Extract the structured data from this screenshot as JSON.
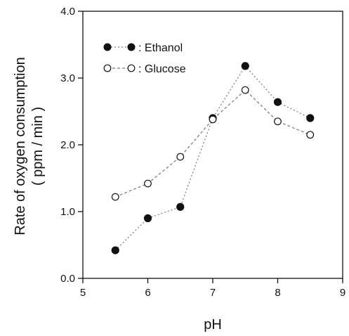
{
  "chart_data": {
    "type": "line",
    "xlabel": "pH",
    "ylabel_line1": "Rate of oxygen consumption",
    "ylabel_line2": "( ppm / min )",
    "xlim": [
      5,
      9
    ],
    "ylim": [
      0,
      4
    ],
    "xticks": [
      "5",
      "6",
      "7",
      "8",
      "9"
    ],
    "yticks": [
      "0.0",
      "1.0",
      "2.0",
      "3.0",
      "4.0"
    ],
    "grid": false,
    "legend_position": "top-left",
    "series": [
      {
        "name": ": Ethanol",
        "marker": "filled-circle",
        "line": "dotted",
        "x": [
          5.5,
          6.0,
          6.5,
          7.0,
          7.5,
          8.0,
          8.5
        ],
        "y": [
          0.42,
          0.9,
          1.07,
          2.4,
          3.18,
          2.64,
          2.4
        ]
      },
      {
        "name": ": Glucose",
        "marker": "open-circle",
        "line": "dashed",
        "x": [
          5.5,
          6.0,
          6.5,
          7.0,
          7.5,
          8.0,
          8.5
        ],
        "y": [
          1.22,
          1.42,
          1.82,
          2.38,
          2.82,
          2.35,
          2.15
        ]
      }
    ]
  }
}
